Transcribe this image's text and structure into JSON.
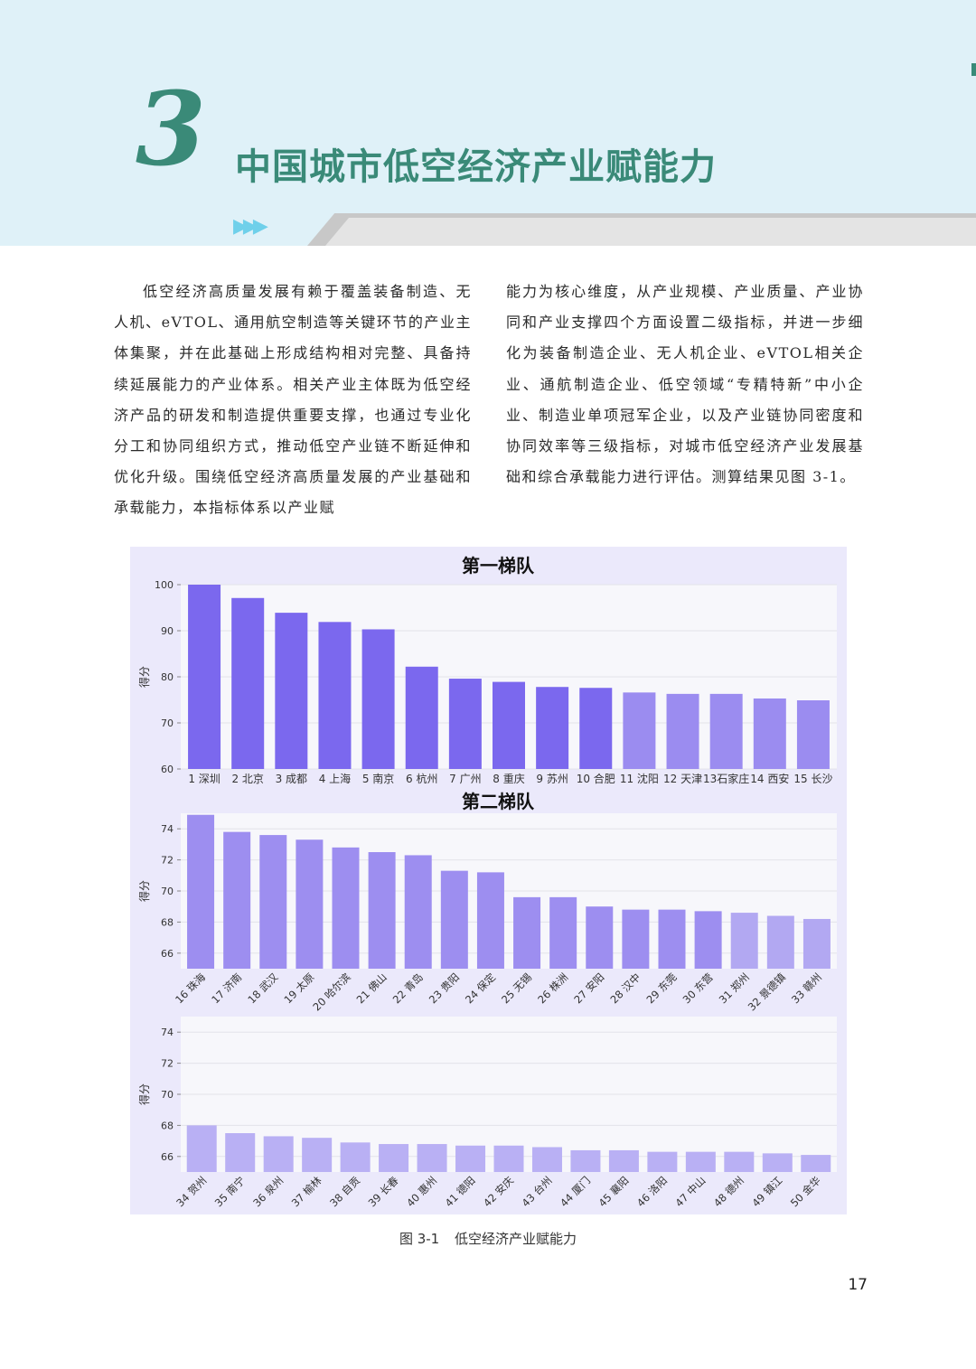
{
  "header": {
    "chapter_number": "3",
    "chapter_title": "中国城市低空经济产业赋能力",
    "arrows": "▶▶▶"
  },
  "body": {
    "left_text": "低空经济高质量发展有赖于覆盖装备制造、无人机、eVTOL、通用航空制造等关键环节的产业主体集聚，并在此基础上形成结构相对完整、具备持续延展能力的产业体系。相关产业主体既为低空经济产品的研发和制造提供重要支撑，也通过专业化分工和协同组织方式，推动低空产业链不断延伸和优化升级。围绕低空经济高质量发展的产业基础和承载能力，本指标体系以产业赋",
    "right_text": "能力为核心维度，从产业规模、产业质量、产业协同和产业支撑四个方面设置二级指标，并进一步细化为装备制造企业、无人机企业、eVTOL相关企业、通航制造企业、低空领域“专精特新”中小企业、制造业单项冠军企业，以及产业链协同密度和协同效率等三级指标，对城市低空经济产业发展基础和综合承载能力进行评估。测算结果见图 3-1。"
  },
  "figure": {
    "caption_label": "图 3-1",
    "caption_text": "低空经济产业赋能力"
  },
  "page_number": "17",
  "colors": {
    "tier1_dark": "#7b68ee",
    "tier1_light": "#9b8cf0",
    "tier2_mid": "#9d8ef0",
    "tier2_light": "#b2a8f2",
    "tier3": "#b9b0f4",
    "panel_bg": "#f7f7fb",
    "figure_bg": "#ebe9fb"
  },
  "chart_data": [
    {
      "type": "bar",
      "title": "第一梯队",
      "ylabel": "得分",
      "xlabel": "",
      "ylim": [
        60,
        100
      ],
      "yticks": [
        60,
        70,
        80,
        90,
        100
      ],
      "grid": true,
      "categories": [
        "1 深圳",
        "2 北京",
        "3 成都",
        "4 上海",
        "5 南京",
        "6 杭州",
        "7 广州",
        "8 重庆",
        "9 苏州",
        "10 合肥",
        "11 沈阳",
        "12 天津",
        "13 石家庄",
        "14 西安",
        "15 长沙"
      ],
      "tick_labels": [
        "1 深圳",
        "2 北京",
        "3 成都",
        "4 上海",
        "5 南京",
        "6 杭州",
        "7 广州",
        "8 重庆",
        "9 苏州",
        "10 合肥",
        "11 沈阳",
        "12 天津",
        "13石家庄",
        "14 西安",
        "15 长沙"
      ],
      "values": [
        100,
        97.1,
        93.9,
        91.9,
        90.3,
        82.2,
        79.6,
        78.9,
        77.8,
        77.6,
        76.6,
        76.3,
        76.3,
        75.3,
        74.9
      ],
      "bar_colors": [
        "#7b68ee",
        "#7b68ee",
        "#7b68ee",
        "#7b68ee",
        "#7b68ee",
        "#7b68ee",
        "#7b68ee",
        "#7b68ee",
        "#7b68ee",
        "#7b68ee",
        "#9b8cf0",
        "#9b8cf0",
        "#9b8cf0",
        "#9b8cf0",
        "#9b8cf0"
      ]
    },
    {
      "type": "bar",
      "title": "第二梯队",
      "ylabel": "得分",
      "xlabel": "",
      "ylim": [
        65,
        75
      ],
      "yticks": [
        66,
        68,
        70,
        72,
        74
      ],
      "grid": true,
      "categories": [
        "16 珠海",
        "17 济南",
        "18 武汉",
        "19 太原",
        "20 哈尔滨",
        "21 佛山",
        "22 青岛",
        "23 贵阳",
        "24 保定",
        "25 无锡",
        "26 株洲",
        "27 安阳",
        "28 汉中",
        "29 东莞",
        "30 东营",
        "31 郑州",
        "32 景德镇",
        "33 赣州"
      ],
      "values": [
        74.9,
        73.8,
        73.6,
        73.3,
        72.8,
        72.5,
        72.3,
        71.3,
        71.2,
        69.6,
        69.6,
        69.0,
        68.8,
        68.8,
        68.7,
        68.6,
        68.4,
        68.2
      ],
      "bar_colors": [
        "#9d8ef0",
        "#9d8ef0",
        "#9d8ef0",
        "#9d8ef0",
        "#9d8ef0",
        "#9d8ef0",
        "#9d8ef0",
        "#9d8ef0",
        "#9d8ef0",
        "#9d8ef0",
        "#9d8ef0",
        "#9d8ef0",
        "#9d8ef0",
        "#9d8ef0",
        "#9d8ef0",
        "#b2a8f2",
        "#b2a8f2",
        "#b2a8f2"
      ]
    },
    {
      "type": "bar",
      "title": "",
      "ylabel": "得分",
      "xlabel": "",
      "ylim": [
        65,
        75
      ],
      "yticks": [
        66,
        68,
        70,
        72,
        74
      ],
      "grid": true,
      "categories": [
        "34 贺州",
        "35 南宁",
        "36 泉州",
        "37 榆林",
        "38 自贡",
        "39 长春",
        "40 惠州",
        "41 德阳",
        "42 安庆",
        "43 台州",
        "44 厦门",
        "45 襄阳",
        "46 洛阳",
        "47 中山",
        "48 德州",
        "49 镇江",
        "50 金华"
      ],
      "values": [
        68.0,
        67.5,
        67.3,
        67.2,
        66.9,
        66.8,
        66.8,
        66.7,
        66.7,
        66.6,
        66.4,
        66.4,
        66.3,
        66.3,
        66.3,
        66.2,
        66.1
      ],
      "bar_colors": [
        "#b9b0f4",
        "#b9b0f4",
        "#b9b0f4",
        "#b9b0f4",
        "#b9b0f4",
        "#b9b0f4",
        "#b9b0f4",
        "#b9b0f4",
        "#b9b0f4",
        "#b9b0f4",
        "#b9b0f4",
        "#b9b0f4",
        "#b9b0f4",
        "#b9b0f4",
        "#b9b0f4",
        "#b9b0f4",
        "#b9b0f4"
      ]
    }
  ]
}
